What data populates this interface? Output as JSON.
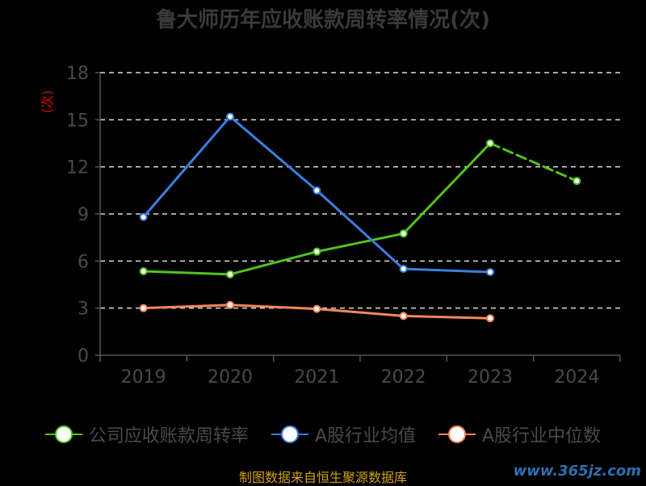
{
  "title": "鲁大师历年应收账款周转率情况(次)",
  "ylabel": "(次)",
  "source": "制图数据来自恒生聚源数据库",
  "watermark": "www.365jz.com",
  "colors": {
    "company": "#52c41a",
    "avg": "#3d7ee0",
    "median": "#f5875a",
    "axis": "#555555",
    "tick_text": "#4a4a4a",
    "grid": "#dddddd",
    "ylabel": "#e00000"
  },
  "chart_data": {
    "type": "line",
    "title": "鲁大师历年应收账款周转率情况(次)",
    "xlabel": "",
    "ylabel": "(次)",
    "categories": [
      "2019",
      "2020",
      "2021",
      "2022",
      "2023",
      "2024"
    ],
    "ylim": [
      0,
      18
    ],
    "yticks": [
      0,
      3,
      6,
      9,
      12,
      15,
      18
    ],
    "grid": true,
    "legend_position": "bottom",
    "series": [
      {
        "name": "公司应收账款周转率",
        "color": "#52c41a",
        "values": [
          5.35,
          5.15,
          6.6,
          7.75,
          13.5,
          11.1
        ],
        "dashed_from_index": 4
      },
      {
        "name": "A股行业均值",
        "color": "#3d7ee0",
        "values": [
          8.8,
          15.2,
          10.5,
          5.5,
          5.3,
          null
        ]
      },
      {
        "name": "A股行业中位数",
        "color": "#f5875a",
        "values": [
          3.0,
          3.2,
          2.95,
          2.5,
          2.35,
          null
        ]
      }
    ]
  }
}
